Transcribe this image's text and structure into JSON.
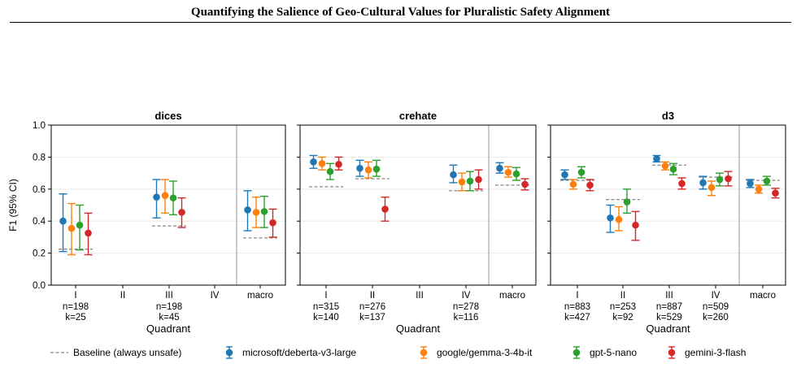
{
  "paper": {
    "running_title": "Quantifying the Salience of Geo-Cultural Values for Pluralistic Safety Alignment"
  },
  "chart_data": {
    "type": "scatter",
    "subtype": "point-with-95%-CI-errorbars",
    "ylabel": "F1 (95% CI)",
    "xlabel": "Quadrant",
    "ylim": [
      0.0,
      1.0
    ],
    "yticks": [
      "0.0",
      "0.2",
      "0.4",
      "0.6",
      "0.8",
      "1.0"
    ],
    "grid": "horizontal",
    "legend_position": "bottom",
    "categories": [
      "I",
      "II",
      "III",
      "IV",
      "macro"
    ],
    "series_names": [
      "microsoft/deberta-v3-large",
      "google/gemma-3-4b-it",
      "gpt-5-nano",
      "gemini-3-flash"
    ],
    "series_colors": [
      "#1f77b4",
      "#ff7f0e",
      "#2ca02c",
      "#d62728"
    ],
    "baseline_label": "Baseline (always unsafe)",
    "baseline_color": "#888888",
    "panels": [
      {
        "title": "dices",
        "n_labels": [
          "n=198",
          "",
          "n=198",
          "",
          ""
        ],
        "k_labels": [
          "k=25",
          "",
          "k=45",
          "",
          ""
        ],
        "baseline": [
          0.225,
          null,
          0.37,
          null,
          0.295
        ],
        "series": [
          {
            "name": "microsoft/deberta-v3-large",
            "values": [
              0.4,
              null,
              0.55,
              null,
              0.47
            ],
            "lo": [
              0.21,
              null,
              0.42,
              null,
              0.34
            ],
            "hi": [
              0.57,
              null,
              0.66,
              null,
              0.59
            ]
          },
          {
            "name": "google/gemma-3-4b-it",
            "values": [
              0.355,
              null,
              0.56,
              null,
              0.455
            ],
            "lo": [
              0.19,
              null,
              0.45,
              null,
              0.36
            ],
            "hi": [
              0.51,
              null,
              0.66,
              null,
              0.55
            ]
          },
          {
            "name": "gpt-5-nano",
            "values": [
              0.375,
              null,
              0.545,
              null,
              0.46
            ],
            "lo": [
              0.22,
              null,
              0.44,
              null,
              0.36
            ],
            "hi": [
              0.5,
              null,
              0.65,
              null,
              0.555
            ]
          },
          {
            "name": "gemini-3-flash",
            "values": [
              0.325,
              null,
              0.455,
              null,
              0.39
            ],
            "lo": [
              0.19,
              null,
              0.36,
              null,
              0.3
            ],
            "hi": [
              0.45,
              null,
              0.545,
              null,
              0.475
            ]
          }
        ]
      },
      {
        "title": "crehate",
        "n_labels": [
          "n=315",
          "n=276",
          "",
          "n=278",
          ""
        ],
        "k_labels": [
          "k=140",
          "k=137",
          "",
          "k=116",
          ""
        ],
        "baseline": [
          0.615,
          0.665,
          null,
          0.59,
          0.625
        ],
        "series": [
          {
            "name": "microsoft/deberta-v3-large",
            "values": [
              0.77,
              0.73,
              null,
              0.69,
              0.73
            ],
            "lo": [
              0.73,
              0.68,
              null,
              0.64,
              0.7
            ],
            "hi": [
              0.81,
              0.78,
              null,
              0.75,
              0.765
            ]
          },
          {
            "name": "google/gemma-3-4b-it",
            "values": [
              0.76,
              0.72,
              null,
              0.645,
              0.705
            ],
            "lo": [
              0.72,
              0.67,
              null,
              0.59,
              0.675
            ],
            "hi": [
              0.8,
              0.77,
              null,
              0.7,
              0.74
            ]
          },
          {
            "name": "gpt-5-nano",
            "values": [
              0.71,
              0.725,
              null,
              0.65,
              0.695
            ],
            "lo": [
              0.66,
              0.68,
              null,
              0.59,
              0.655
            ],
            "hi": [
              0.76,
              0.78,
              null,
              0.71,
              0.735
            ]
          },
          {
            "name": "gemini-3-flash",
            "values": [
              0.755,
              0.475,
              null,
              0.66,
              0.63
            ],
            "lo": [
              0.72,
              0.4,
              null,
              0.6,
              0.595
            ],
            "hi": [
              0.8,
              0.55,
              null,
              0.72,
              0.665
            ]
          }
        ]
      },
      {
        "title": "d3",
        "n_labels": [
          "n=883",
          "n=253",
          "n=887",
          "n=509",
          ""
        ],
        "k_labels": [
          "k=427",
          "k=92",
          "k=529",
          "k=260",
          ""
        ],
        "baseline": [
          0.655,
          0.535,
          0.75,
          0.675,
          0.655
        ],
        "series": [
          {
            "name": "microsoft/deberta-v3-large",
            "values": [
              0.69,
              0.42,
              0.79,
              0.64,
              0.635
            ],
            "lo": [
              0.66,
              0.33,
              0.77,
              0.6,
              0.61
            ],
            "hi": [
              0.72,
              0.5,
              0.81,
              0.68,
              0.66
            ]
          },
          {
            "name": "google/gemma-3-4b-it",
            "values": [
              0.63,
              0.41,
              0.745,
              0.61,
              0.6
            ],
            "lo": [
              0.6,
              0.34,
              0.72,
              0.56,
              0.575
            ],
            "hi": [
              0.66,
              0.49,
              0.77,
              0.65,
              0.625
            ]
          },
          {
            "name": "gpt-5-nano",
            "values": [
              0.705,
              0.52,
              0.725,
              0.66,
              0.65
            ],
            "lo": [
              0.67,
              0.45,
              0.69,
              0.62,
              0.625
            ],
            "hi": [
              0.74,
              0.6,
              0.76,
              0.7,
              0.68
            ]
          },
          {
            "name": "gemini-3-flash",
            "values": [
              0.625,
              0.375,
              0.635,
              0.665,
              0.575
            ],
            "lo": [
              0.59,
              0.28,
              0.6,
              0.62,
              0.545
            ],
            "hi": [
              0.66,
              0.46,
              0.67,
              0.71,
              0.605
            ]
          }
        ]
      }
    ]
  }
}
